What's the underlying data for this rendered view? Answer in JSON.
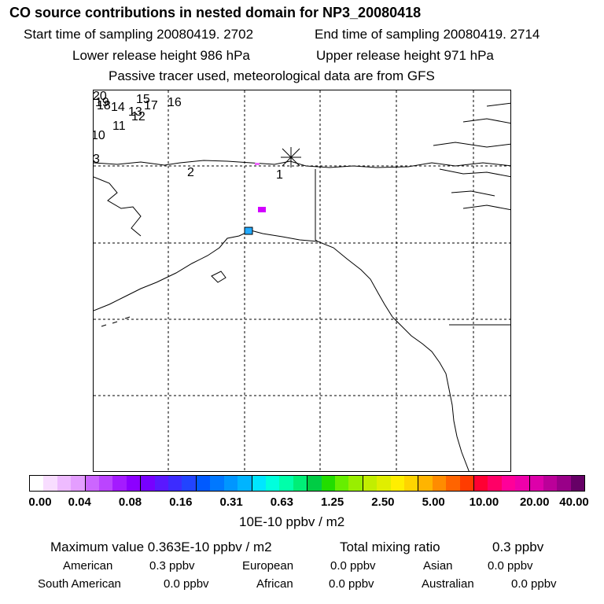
{
  "header": {
    "title": "CO  source contributions in nested domain for NP3_20080418",
    "start_time": "Start time of sampling 20080419.  2702",
    "end_time": "End time of sampling 20080419.  2714",
    "lower_release": "Lower release height  986 hPa",
    "upper_release": "Upper release height  971 hPa",
    "tracer_note": "Passive tracer used, meteorological data are from GFS"
  },
  "map": {
    "trajectory_labels": [
      "20",
      "19",
      "18",
      "14",
      "15",
      "13",
      "12",
      "17",
      "16",
      "11",
      "10",
      "3",
      "2",
      "1"
    ],
    "receptor_marker": "asterisk",
    "colors": {
      "coast": "#000000",
      "grid": "#000000",
      "plume_a": "#d200ff",
      "plume_b": "#ee66ff",
      "plume_c": "#22aaff"
    }
  },
  "colorbar": {
    "ticks": [
      "0.00",
      "0.04",
      "0.08",
      "0.16",
      "0.31",
      "0.63",
      "1.25",
      "2.50",
      "5.00",
      "10.00",
      "20.00",
      "40.00"
    ],
    "colors": [
      "#ffffff",
      "#f8ddff",
      "#eebbff",
      "#e49eff",
      "#cc66ff",
      "#bb44ff",
      "#a41bff",
      "#8c00ff",
      "#7700ff",
      "#5a18ff",
      "#3c2cff",
      "#2244ff",
      "#005aff",
      "#0078ff",
      "#0096ff",
      "#00b4ff",
      "#00e6ff",
      "#00ffdd",
      "#00ffaa",
      "#00ee77",
      "#00cc44",
      "#22dd00",
      "#66ee00",
      "#99ee00",
      "#c2ee00",
      "#e0ee00",
      "#ffee00",
      "#ffd400",
      "#ffb400",
      "#ff8c00",
      "#ff6400",
      "#ff3c00",
      "#ff0033",
      "#ff0066",
      "#ff0099",
      "#ee00aa",
      "#dd00aa",
      "#bb0099",
      "#990088",
      "#660066"
    ],
    "units": "10E-10 ppbv / m2"
  },
  "summary": {
    "max_value": "Maximum value  0.363E-10 ppbv / m2",
    "total_label": "Total mixing ratio",
    "total_value": "0.3 ppbv",
    "regions": [
      {
        "name": "American",
        "value": "0.3 ppbv"
      },
      {
        "name": "European",
        "value": "0.0 ppbv"
      },
      {
        "name": "Asian",
        "value": "0.0 ppbv"
      },
      {
        "name": "South American",
        "value": "0.0 ppbv"
      },
      {
        "name": "African",
        "value": "0.0 ppbv"
      },
      {
        "name": "Australian",
        "value": "0.0 ppbv"
      }
    ]
  }
}
